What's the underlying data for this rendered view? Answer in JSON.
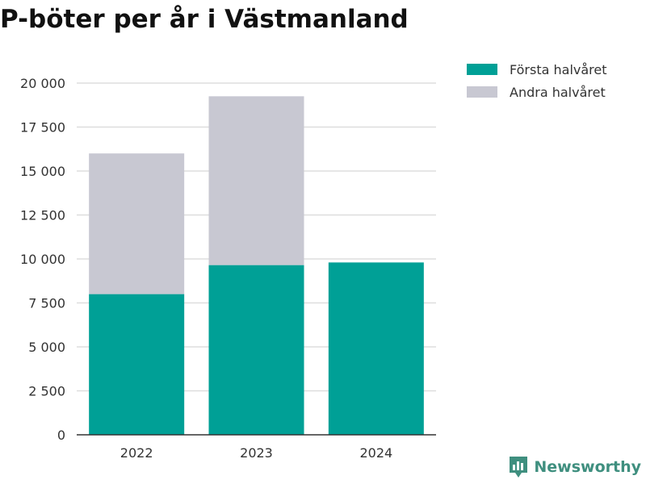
{
  "title": "P-böter per år i Västmanland",
  "brand": "Newsworthy",
  "chart_data": {
    "type": "bar",
    "stacked": true,
    "title": "P-böter per år i Västmanland",
    "xlabel": "",
    "ylabel": "",
    "categories": [
      "2022",
      "2023",
      "2024"
    ],
    "series": [
      {
        "name": "Första halvåret",
        "values": [
          8000,
          9650,
          9800
        ],
        "color": "#00a096"
      },
      {
        "name": "Andra halvåret",
        "values": [
          8000,
          9600,
          null
        ],
        "color": "#c8c8d2"
      }
    ],
    "ylim": [
      0,
      20000
    ],
    "yticks": [
      0,
      2500,
      5000,
      7500,
      10000,
      12500,
      15000,
      17500,
      20000
    ],
    "ytick_labels": [
      "0",
      "2 500",
      "5 000",
      "7 500",
      "10 000",
      "12 500",
      "15 000",
      "17 500",
      "20 000"
    ],
    "grid": true,
    "legend_position": "top-right"
  }
}
